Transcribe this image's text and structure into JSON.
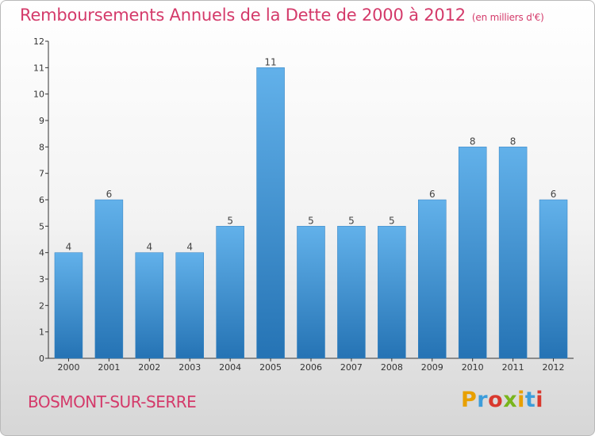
{
  "title": "Remboursements Annuels de la Dette de 2000 à 2012",
  "subtitle": "(en milliers d'€)",
  "commune": "BOSMONT-SUR-SERRE",
  "logo": {
    "letters": [
      "P",
      "r",
      "o",
      "x",
      "i",
      "t",
      "i"
    ],
    "colors": [
      "#e8a000",
      "#3c9ddb",
      "#d9392e",
      "#79b51c",
      "#e8a000",
      "#3c9ddb",
      "#d9392e"
    ]
  },
  "colors": {
    "bar": "#4a9edc",
    "bar_light": "#62b1ea",
    "bar_dark": "#2573b4",
    "title": "#d43a6a"
  },
  "chart_data": {
    "type": "bar",
    "title": "Remboursements Annuels de la Dette de 2000 à 2012",
    "subtitle": "(en milliers d'€)",
    "categories": [
      "2000",
      "2001",
      "2002",
      "2003",
      "2004",
      "2005",
      "2006",
      "2007",
      "2008",
      "2009",
      "2010",
      "2011",
      "2012"
    ],
    "values": [
      4,
      6,
      4,
      4,
      5,
      11,
      5,
      5,
      5,
      6,
      8,
      8,
      6
    ],
    "ylim": [
      0,
      12
    ],
    "yticks": [
      0,
      1,
      2,
      3,
      4,
      5,
      6,
      7,
      8,
      9,
      10,
      11,
      12
    ],
    "grid": false,
    "data_labels": true
  }
}
